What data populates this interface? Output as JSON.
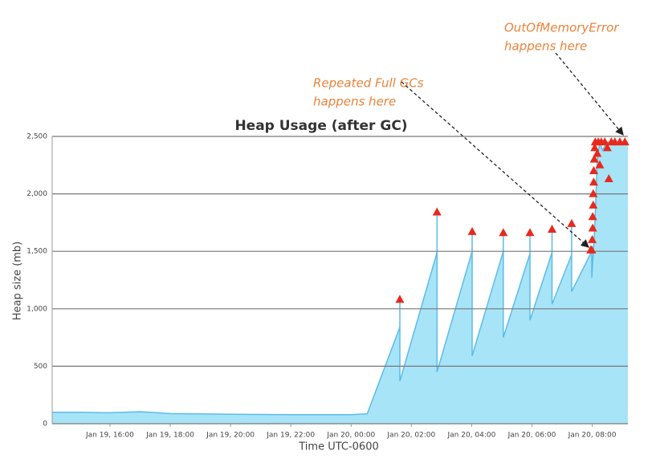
{
  "chart_data": {
    "type": "area",
    "title": "Heap Usage (after GC)",
    "y_label": "Heap size (mb)",
    "x_label": "Time UTC-0600",
    "annotations": [
      {
        "lines": [
          "Repeated Full GCs",
          "happens here"
        ]
      },
      {
        "lines": [
          "OutOfMemoryError",
          "happens here"
        ]
      }
    ],
    "x": [
      "Jan 19, 14:05",
      "Jan 19, 15:00",
      "Jan 19, 16:00",
      "Jan 19, 17:00",
      "Jan 19, 18:00",
      "Jan 19, 20:00",
      "Jan 19, 22:00",
      "Jan 20, 00:00",
      "Jan 20, 00:32",
      "Jan 20, 01:37",
      "Jan 20, 01:37",
      "Jan 20, 01:37",
      "Jan 20, 02:51",
      "Jan 20, 02:51",
      "Jan 20, 02:51",
      "Jan 20, 04:01",
      "Jan 20, 04:01",
      "Jan 20, 04:01",
      "Jan 20, 05:03",
      "Jan 20, 05:03",
      "Jan 20, 05:03",
      "Jan 20, 05:56",
      "Jan 20, 05:56",
      "Jan 20, 05:56",
      "Jan 20, 06:40",
      "Jan 20, 06:40",
      "Jan 20, 06:40",
      "Jan 20, 07:19",
      "Jan 20, 07:19",
      "Jan 20, 07:19",
      "Jan 20, 07:59",
      "Jan 20, 07:59",
      "Jan 20, 08:05",
      "Jan 20, 08:10",
      "Jan 20, 08:15",
      "Jan 20, 08:20",
      "Jan 20, 08:30",
      "Jan 20, 09:11"
    ],
    "values": [
      100,
      100,
      95,
      105,
      88,
      82,
      78,
      78,
      85,
      840,
      1080,
      370,
      1490,
      1840,
      450,
      1500,
      1670,
      590,
      1500,
      1660,
      750,
      1480,
      1660,
      900,
      1490,
      1690,
      1040,
      1470,
      1740,
      1150,
      1500,
      1270,
      1700,
      2300,
      2450,
      2380,
      2450,
      2450
    ],
    "color": "#a8e4f8",
    "line_color": "#5bbce8",
    "markers": {
      "x": [
        "Jan 20, 01:37",
        "Jan 20, 02:51",
        "Jan 20, 04:01",
        "Jan 20, 05:03",
        "Jan 20, 05:56",
        "Jan 20, 06:40",
        "Jan 20, 07:19",
        "Jan 20, 07:57",
        "Jan 20, 07:59",
        "Jan 20, 08:00",
        "Jan 20, 08:01",
        "Jan 20, 08:01",
        "Jan 20, 08:02",
        "Jan 20, 08:02",
        "Jan 20, 08:03",
        "Jan 20, 08:03",
        "Jan 20, 08:04",
        "Jan 20, 08:05",
        "Jan 20, 08:06",
        "Jan 20, 08:10",
        "Jan 20, 08:12",
        "Jan 20, 08:15",
        "Jan 20, 08:18",
        "Jan 20, 08:25",
        "Jan 20, 08:30",
        "Jan 20, 08:33",
        "Jan 20, 08:38",
        "Jan 20, 08:45",
        "Jan 20, 08:55",
        "Jan 20, 09:05"
      ],
      "values": [
        1080,
        1840,
        1670,
        1660,
        1660,
        1690,
        1740,
        1510,
        1510,
        1600,
        1700,
        1800,
        1900,
        2000,
        2100,
        2200,
        2300,
        2400,
        2450,
        2350,
        2450,
        2250,
        2450,
        2450,
        2400,
        2130,
        2450,
        2450,
        2450,
        2450
      ],
      "color": "#e8291c"
    },
    "xlim": [
      "Jan 19, 14:05",
      "Jan 20, 09:11"
    ],
    "xticks": [
      "Jan 19, 16:00",
      "Jan 19, 18:00",
      "Jan 19, 20:00",
      "Jan 19, 22:00",
      "Jan 20, 00:00",
      "Jan 20, 02:00",
      "Jan 20, 04:00",
      "Jan 20, 06:00",
      "Jan 20, 08:00"
    ],
    "ylim": [
      0,
      2500
    ],
    "yticks": [
      0,
      500,
      {
        "value": 1000,
        "label": "1,000"
      },
      {
        "value": 1500,
        "label": "1,500"
      },
      {
        "value": 2000,
        "label": "2,000"
      },
      {
        "value": 2500,
        "label": "2,500"
      }
    ],
    "grid": true
  }
}
